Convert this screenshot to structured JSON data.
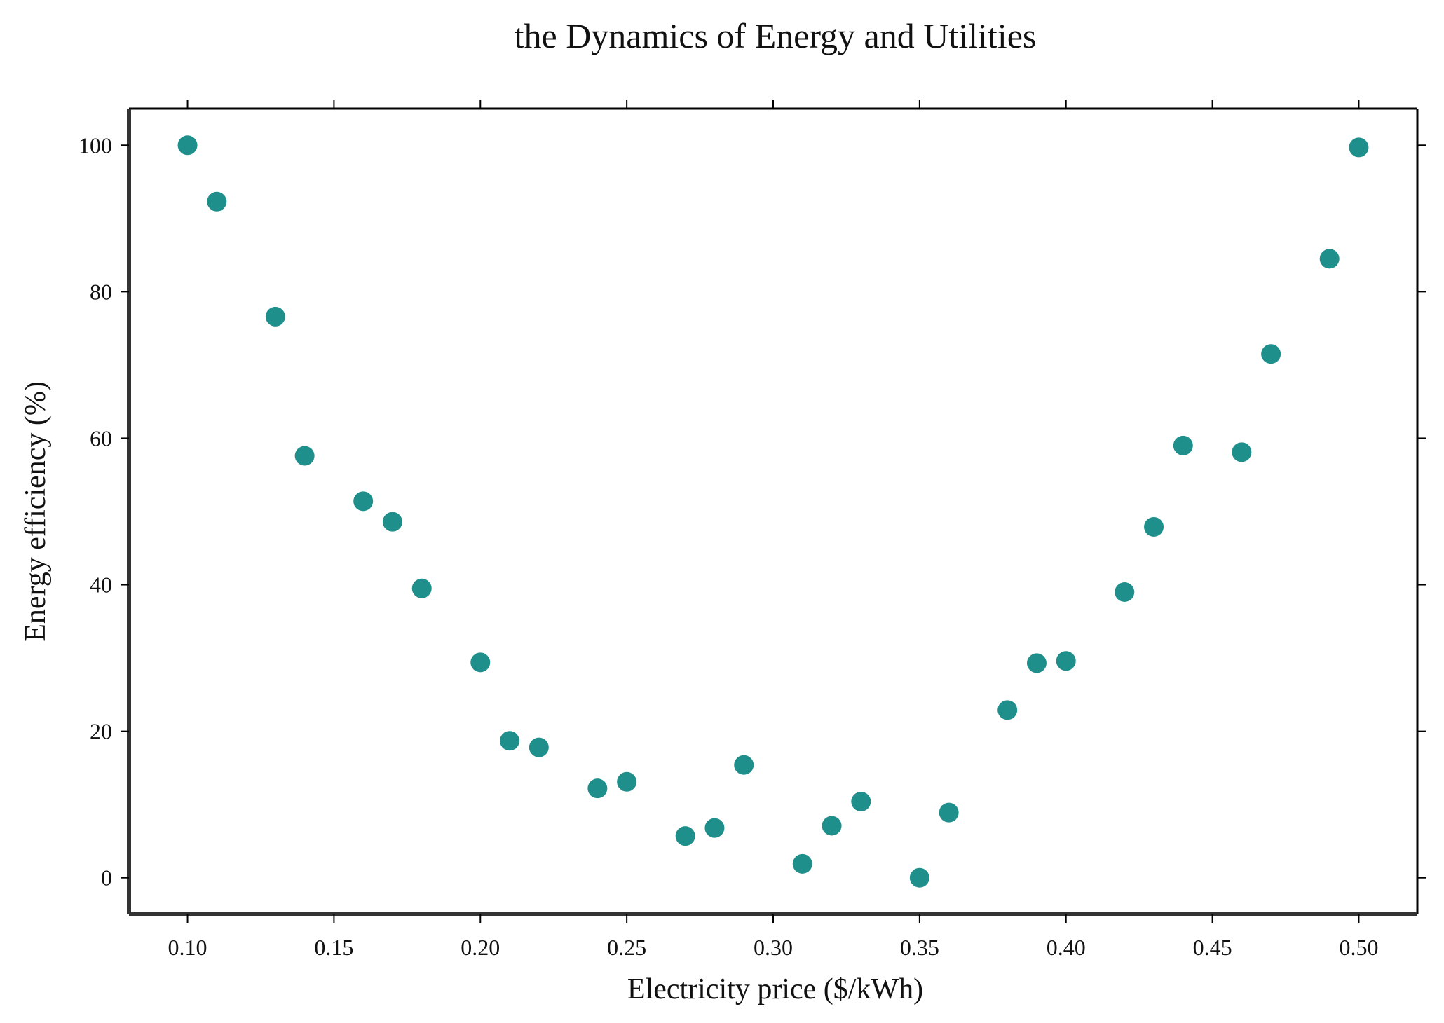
{
  "chart_data": {
    "type": "scatter",
    "title": "the Dynamics of Energy and Utilities",
    "xlabel": "Electricity price ($/kWh)",
    "ylabel": "Energy efficiency (%)",
    "xlim": [
      0.08,
      0.52
    ],
    "ylim": [
      -5,
      105
    ],
    "xticks": [
      0.1,
      0.15,
      0.2,
      0.25,
      0.3,
      0.35,
      0.4,
      0.45,
      0.5
    ],
    "xtick_labels": [
      "0.10",
      "0.15",
      "0.20",
      "0.25",
      "0.30",
      "0.35",
      "0.40",
      "0.45",
      "0.50"
    ],
    "yticks": [
      0,
      20,
      40,
      60,
      80,
      100
    ],
    "ytick_labels": [
      "0",
      "20",
      "40",
      "60",
      "80",
      "100"
    ],
    "grid": false,
    "legend": "none",
    "marker_color": "#1f8f8c",
    "frame_color": "#000000",
    "x": [
      0.1,
      0.11,
      0.13,
      0.14,
      0.16,
      0.17,
      0.18,
      0.2,
      0.21,
      0.22,
      0.24,
      0.25,
      0.27,
      0.28,
      0.29,
      0.31,
      0.32,
      0.33,
      0.35,
      0.36,
      0.38,
      0.39,
      0.4,
      0.42,
      0.43,
      0.44,
      0.46,
      0.47,
      0.49,
      0.5
    ],
    "y": [
      100.0,
      92.3,
      76.6,
      57.6,
      51.4,
      48.6,
      39.5,
      29.4,
      18.7,
      17.8,
      12.2,
      13.1,
      5.7,
      6.8,
      15.4,
      1.9,
      7.1,
      10.4,
      0.0,
      8.9,
      22.9,
      29.3,
      29.6,
      39.0,
      47.9,
      59.0,
      58.1,
      71.5,
      84.5,
      99.7
    ]
  }
}
